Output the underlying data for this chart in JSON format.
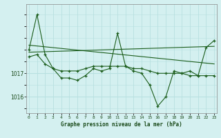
{
  "xlabel": "Graphe pression niveau de la mer (hPa)",
  "background_color": "#d4f0f0",
  "grid_color": "#b8e0e0",
  "line_color": "#1a5c1a",
  "x_values": [
    0,
    1,
    2,
    3,
    4,
    5,
    6,
    7,
    8,
    9,
    10,
    11,
    12,
    13,
    14,
    15,
    16,
    17,
    18,
    19,
    20,
    21,
    22,
    23
  ],
  "series1": [
    1018.0,
    1019.5,
    1017.8,
    1017.2,
    1016.8,
    1016.8,
    1016.7,
    1016.9,
    1017.2,
    1017.1,
    1017.2,
    1018.7,
    1017.3,
    1017.1,
    1017.0,
    1016.5,
    1015.6,
    1016.0,
    1017.1,
    1017.0,
    1017.1,
    1016.9,
    1018.1,
    1018.4
  ],
  "series2": [
    1017.7,
    1017.8,
    1017.4,
    1017.2,
    1017.1,
    1017.1,
    1017.1,
    1017.2,
    1017.3,
    1017.3,
    1017.3,
    1017.3,
    1017.3,
    1017.2,
    1017.2,
    1017.1,
    1017.0,
    1017.0,
    1017.0,
    1017.0,
    1016.9,
    1016.9,
    1016.9,
    1016.9
  ],
  "trend1_x": [
    0,
    23
  ],
  "trend1_y": [
    1018.2,
    1017.4
  ],
  "trend2_x": [
    0,
    23
  ],
  "trend2_y": [
    1017.9,
    1018.15
  ],
  "ylim_min": 1015.3,
  "ylim_max": 1019.95,
  "ytick_major": [
    1016,
    1017
  ],
  "xlim_min": -0.3,
  "xlim_max": 23.3
}
